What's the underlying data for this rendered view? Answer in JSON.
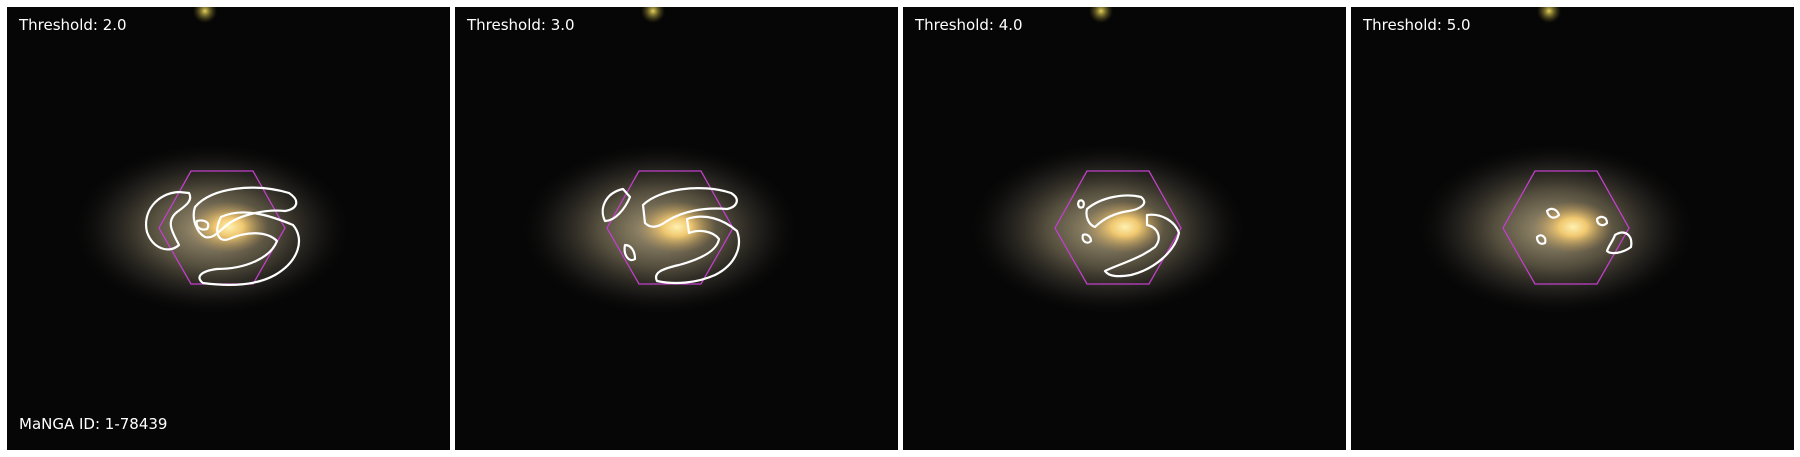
{
  "panels": [
    {
      "threshold_label": "Threshold: 2.0"
    },
    {
      "threshold_label": "Threshold: 3.0"
    },
    {
      "threshold_label": "Threshold: 4.0"
    },
    {
      "threshold_label": "Threshold: 5.0"
    }
  ],
  "manga_id_label": "MaNGA ID: 1-78439",
  "colors": {
    "contour": "#ffffff",
    "ifu_hexagon": "#c040c8",
    "background": "#060606",
    "galaxy_core": "#ffd070"
  }
}
